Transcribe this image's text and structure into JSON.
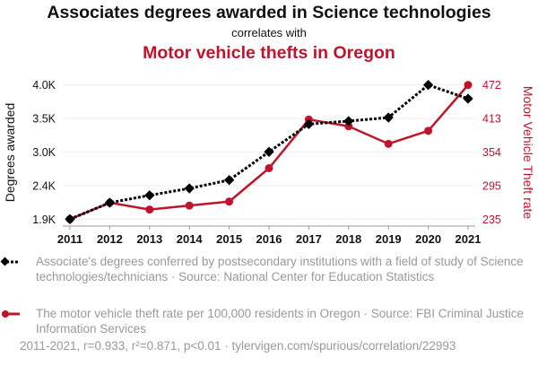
{
  "title": "Associates degrees awarded in Science technologies",
  "subtitle": "correlates with",
  "title2": "Motor vehicle thefts in Oregon",
  "colors": {
    "series1": "#000000",
    "series2": "#c0132c"
  },
  "chart_data": {
    "type": "line",
    "x": [
      2011,
      2012,
      2013,
      2014,
      2015,
      2016,
      2017,
      2018,
      2019,
      2020,
      2021
    ],
    "x_tick_labels": [
      "2011",
      "2012",
      "2013",
      "2014",
      "2015",
      "2016",
      "2017",
      "2018",
      "2019",
      "2020",
      "2021"
    ],
    "series": [
      {
        "name": "Associate's degrees conferred by postsecondary institutions with a field of study of Science technologies/technicians · Source: National Center for Education Statistics",
        "axis": "left",
        "values": [
          1900,
          2157,
          2273,
          2381,
          2512,
          2953,
          3388,
          3434,
          3490,
          4000,
          3785
        ]
      },
      {
        "name": "The motor vehicle theft rate per 100,000 residents in Oregon · Source: FBI Criminal Justice Information Services",
        "axis": "right",
        "values": [
          235,
          264,
          252,
          259,
          266,
          325,
          411,
          399,
          368,
          391,
          472
        ]
      }
    ],
    "ylabel_left": "Degrees awarded",
    "ylim_left": [
      1900,
      4000
    ],
    "yticks_left": [
      "1.9K",
      "2.4K",
      "3.0K",
      "3.5K",
      "4.0K"
    ],
    "ylabel_right": "Motor Vehicle Theft rate",
    "ylim_right": [
      235,
      472
    ],
    "yticks_right": [
      "235",
      "295",
      "354",
      "413",
      "472"
    ],
    "grid": true
  },
  "legend": {
    "s1": "Associate's degrees conferred by postsecondary institutions with a field of study of Science technologies/technicians · Source: National Center for Education Statistics",
    "s2": "The motor vehicle theft rate per 100,000 residents in Oregon · Source: FBI Criminal Justice Information Services"
  },
  "footer": "2011-2021, r=0.933, r²=0.871, p<0.01 · tylervigen.com/spurious/correlation/22993"
}
